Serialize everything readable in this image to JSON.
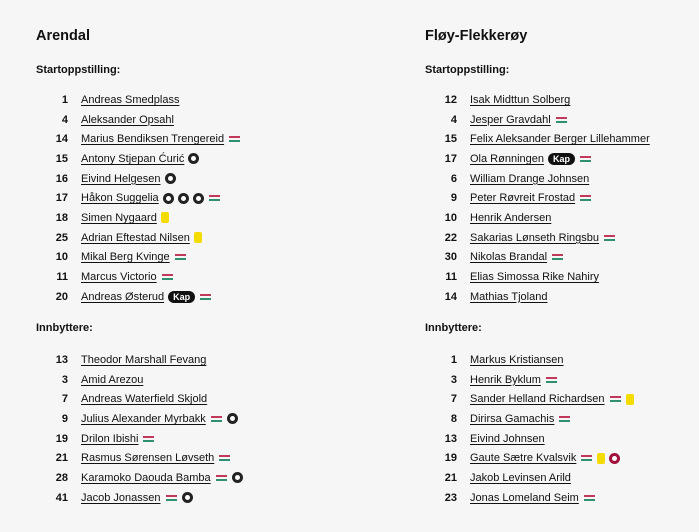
{
  "teams": [
    {
      "name": "Arendal",
      "start_label": "Startoppstilling:",
      "subs_label": "Innbyttere:",
      "start": [
        {
          "num": "1",
          "name": "Andreas Smedplass",
          "icons": []
        },
        {
          "num": "4",
          "name": "Aleksander Opsahl",
          "icons": []
        },
        {
          "num": "14",
          "name": "Marius Bendiksen Trengereid",
          "icons": [
            "sub"
          ]
        },
        {
          "num": "15",
          "name": "Antony Stjepan Ćurić",
          "icons": [
            "goal"
          ]
        },
        {
          "num": "16",
          "name": "Eivind Helgesen",
          "icons": [
            "goal"
          ]
        },
        {
          "num": "17",
          "name": "Håkon Suggelia",
          "icons": [
            "goal",
            "goal",
            "goal",
            "sub"
          ]
        },
        {
          "num": "18",
          "name": "Simen Nygaard",
          "icons": [
            "yellow-card"
          ]
        },
        {
          "num": "25",
          "name": "Adrian Eftestad Nilsen",
          "icons": [
            "yellow-card"
          ]
        },
        {
          "num": "10",
          "name": "Mikal Berg Kvinge",
          "icons": [
            "sub"
          ]
        },
        {
          "num": "11",
          "name": "Marcus Victorio",
          "icons": [
            "sub"
          ]
        },
        {
          "num": "20",
          "name": "Andreas Østerud",
          "icons": [
            "captain",
            "sub"
          ]
        }
      ],
      "subs": [
        {
          "num": "13",
          "name": "Theodor Marshall Fevang",
          "icons": []
        },
        {
          "num": "3",
          "name": "Amid Arezou",
          "icons": []
        },
        {
          "num": "7",
          "name": "Andreas Waterfield Skjold",
          "icons": []
        },
        {
          "num": "9",
          "name": "Julius Alexander Myrbakk",
          "icons": [
            "sub",
            "goal"
          ]
        },
        {
          "num": "19",
          "name": "Drilon Ibishi",
          "icons": [
            "sub"
          ]
        },
        {
          "num": "21",
          "name": "Rasmus Sørensen Løvseth",
          "icons": [
            "sub"
          ]
        },
        {
          "num": "28",
          "name": "Karamoko Daouda Bamba",
          "icons": [
            "sub",
            "goal"
          ]
        },
        {
          "num": "41",
          "name": "Jacob Jonassen",
          "icons": [
            "sub",
            "goal"
          ]
        }
      ]
    },
    {
      "name": "Fløy-Flekkerøy",
      "start_label": "Startoppstilling:",
      "subs_label": "Innbyttere:",
      "start": [
        {
          "num": "12",
          "name": "Isak Midttun Solberg",
          "icons": []
        },
        {
          "num": "4",
          "name": "Jesper Gravdahl",
          "icons": [
            "sub"
          ]
        },
        {
          "num": "15",
          "name": "Felix Aleksander Berger Lillehammer",
          "icons": []
        },
        {
          "num": "17",
          "name": "Ola Rønningen",
          "icons": [
            "captain",
            "sub"
          ]
        },
        {
          "num": "6",
          "name": "William Drange Johnsen",
          "icons": []
        },
        {
          "num": "9",
          "name": "Peter Røvreit Frostad",
          "icons": [
            "sub"
          ]
        },
        {
          "num": "10",
          "name": "Henrik Andersen",
          "icons": []
        },
        {
          "num": "22",
          "name": "Sakarias Lønseth Ringsbu",
          "icons": [
            "sub"
          ]
        },
        {
          "num": "30",
          "name": "Nikolas Brandal",
          "icons": [
            "sub"
          ]
        },
        {
          "num": "11",
          "name": "Elias Simossa Rike Nahiry",
          "icons": []
        },
        {
          "num": "14",
          "name": "Mathias Tjoland",
          "icons": []
        }
      ],
      "subs": [
        {
          "num": "1",
          "name": "Markus Kristiansen",
          "icons": []
        },
        {
          "num": "3",
          "name": "Henrik Byklum",
          "icons": [
            "sub"
          ]
        },
        {
          "num": "7",
          "name": "Sander Helland Richardsen",
          "icons": [
            "sub",
            "yellow-card"
          ]
        },
        {
          "num": "8",
          "name": "Dirirsa Gamachis",
          "icons": [
            "sub"
          ]
        },
        {
          "num": "13",
          "name": "Eivind Johnsen",
          "icons": []
        },
        {
          "num": "19",
          "name": "Gaute Sætre Kvalsvik",
          "icons": [
            "sub",
            "yellow-card",
            "own-goal"
          ]
        },
        {
          "num": "21",
          "name": "Jakob Levinsen Arild",
          "icons": []
        },
        {
          "num": "23",
          "name": "Jonas Lomeland Seim",
          "icons": [
            "sub"
          ]
        }
      ]
    }
  ],
  "captain_label": "Kap",
  "colors": {
    "yellow_card": "#f5dc00",
    "own_goal": "#a0103a",
    "sub_out": "#c0395a",
    "sub_in": "#2f8f6f"
  }
}
